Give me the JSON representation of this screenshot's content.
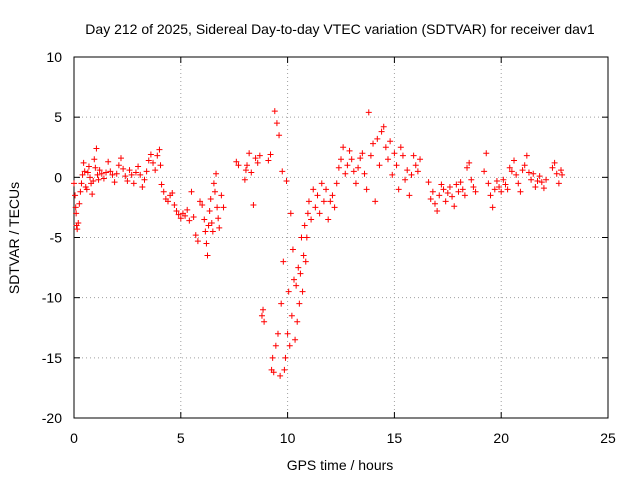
{
  "chart_data": {
    "type": "scatter",
    "title": "Day 212 of 2025, Sidereal Day-to-day VTEC variation (SDTVAR) for receiver dav1",
    "xlabel": "GPS time / hours",
    "ylabel": "SDTVAR / TECUs",
    "xlim": [
      0,
      25
    ],
    "ylim": [
      -20,
      10
    ],
    "xticks": [
      "0",
      "5",
      "10",
      "15",
      "20",
      "25"
    ],
    "yticks": [
      "-20",
      "-15",
      "-10",
      "-5",
      "0",
      "5",
      "10"
    ],
    "grid": true,
    "marker": "+",
    "series": [
      {
        "name": "SDTVAR",
        "color": "#ff0000",
        "points": [
          [
            0.0,
            -0.5
          ],
          [
            0.05,
            -1.5
          ],
          [
            0.08,
            -2.5
          ],
          [
            0.1,
            -3.0
          ],
          [
            0.12,
            -4.0
          ],
          [
            0.15,
            -4.3
          ],
          [
            0.2,
            -3.8
          ],
          [
            0.25,
            -2.2
          ],
          [
            0.3,
            -1.2
          ],
          [
            0.35,
            -0.5
          ],
          [
            0.4,
            0.2
          ],
          [
            0.45,
            1.2
          ],
          [
            0.5,
            0.5
          ],
          [
            0.55,
            -0.8
          ],
          [
            0.6,
            -1.0
          ],
          [
            0.65,
            0.4
          ],
          [
            0.7,
            0.9
          ],
          [
            0.75,
            0.0
          ],
          [
            0.8,
            -0.5
          ],
          [
            0.85,
            -1.4
          ],
          [
            0.9,
            -0.3
          ],
          [
            0.95,
            1.5
          ],
          [
            1.0,
            0.8
          ],
          [
            1.05,
            2.4
          ],
          [
            1.1,
            0.2
          ],
          [
            1.15,
            -0.2
          ],
          [
            1.2,
            0.6
          ],
          [
            1.3,
            0.3
          ],
          [
            1.4,
            -0.1
          ],
          [
            1.5,
            0.4
          ],
          [
            1.6,
            1.3
          ],
          [
            1.7,
            0.5
          ],
          [
            1.8,
            0.2
          ],
          [
            1.9,
            -0.4
          ],
          [
            2.0,
            0.3
          ],
          [
            2.1,
            1.0
          ],
          [
            2.2,
            1.6
          ],
          [
            2.3,
            0.7
          ],
          [
            2.4,
            0.1
          ],
          [
            2.5,
            -0.3
          ],
          [
            2.6,
            0.6
          ],
          [
            2.7,
            0.2
          ],
          [
            2.8,
            -0.5
          ],
          [
            2.9,
            0.4
          ],
          [
            3.0,
            0.9
          ],
          [
            3.1,
            0.2
          ],
          [
            3.2,
            -0.8
          ],
          [
            3.3,
            -0.2
          ],
          [
            3.4,
            0.5
          ],
          [
            3.5,
            1.4
          ],
          [
            3.6,
            1.9
          ],
          [
            3.7,
            1.2
          ],
          [
            3.8,
            0.6
          ],
          [
            3.9,
            1.8
          ],
          [
            4.0,
            2.3
          ],
          [
            4.05,
            1.0
          ],
          [
            4.1,
            -0.6
          ],
          [
            4.2,
            -1.2
          ],
          [
            4.3,
            -1.8
          ],
          [
            4.4,
            -2.0
          ],
          [
            4.5,
            -1.5
          ],
          [
            4.6,
            -1.3
          ],
          [
            4.7,
            -2.3
          ],
          [
            4.8,
            -2.8
          ],
          [
            4.9,
            -3.1
          ],
          [
            5.0,
            -3.4
          ],
          [
            5.1,
            -3.0
          ],
          [
            5.2,
            -3.2
          ],
          [
            5.3,
            -2.7
          ],
          [
            5.4,
            -3.6
          ],
          [
            5.5,
            -1.2
          ],
          [
            5.6,
            -3.3
          ],
          [
            5.7,
            -4.8
          ],
          [
            5.8,
            -5.3
          ],
          [
            5.9,
            -2.0
          ],
          [
            6.0,
            -2.3
          ],
          [
            6.1,
            -3.5
          ],
          [
            6.15,
            -4.5
          ],
          [
            6.2,
            -5.5
          ],
          [
            6.25,
            -6.5
          ],
          [
            6.3,
            -4.0
          ],
          [
            6.35,
            -2.8
          ],
          [
            6.4,
            -1.8
          ],
          [
            6.45,
            -3.8
          ],
          [
            6.5,
            -4.5
          ],
          [
            6.55,
            -0.5
          ],
          [
            6.6,
            -1.2
          ],
          [
            6.65,
            0.3
          ],
          [
            6.7,
            -2.5
          ],
          [
            6.75,
            -3.4
          ],
          [
            6.8,
            -4.2
          ],
          [
            6.9,
            -1.5
          ],
          [
            7.0,
            -2.5
          ],
          [
            7.6,
            1.3
          ],
          [
            7.7,
            1.0
          ],
          [
            8.0,
            -0.2
          ],
          [
            8.05,
            0.6
          ],
          [
            8.1,
            1.0
          ],
          [
            8.2,
            2.0
          ],
          [
            8.3,
            0.4
          ],
          [
            8.4,
            -2.3
          ],
          [
            8.5,
            1.6
          ],
          [
            8.6,
            1.2
          ],
          [
            8.7,
            1.8
          ],
          [
            8.8,
            -11.5
          ],
          [
            8.85,
            -11.0
          ],
          [
            8.9,
            -12.0
          ],
          [
            9.1,
            1.4
          ],
          [
            9.2,
            1.9
          ],
          [
            9.25,
            -16.0
          ],
          [
            9.3,
            -15.0
          ],
          [
            9.35,
            -16.2
          ],
          [
            9.4,
            5.5
          ],
          [
            9.45,
            -14.0
          ],
          [
            9.5,
            4.5
          ],
          [
            9.55,
            -13.0
          ],
          [
            9.6,
            3.5
          ],
          [
            9.65,
            -16.5
          ],
          [
            9.7,
            -10.5
          ],
          [
            9.75,
            0.5
          ],
          [
            9.8,
            -7.0
          ],
          [
            9.85,
            -16.0
          ],
          [
            9.9,
            -15.0
          ],
          [
            9.95,
            -0.3
          ],
          [
            10.0,
            -13.0
          ],
          [
            10.05,
            -9.5
          ],
          [
            10.1,
            -14.0
          ],
          [
            10.15,
            -3.0
          ],
          [
            10.2,
            -11.5
          ],
          [
            10.25,
            -6.0
          ],
          [
            10.3,
            -8.5
          ],
          [
            10.35,
            -13.5
          ],
          [
            10.4,
            -9.0
          ],
          [
            10.45,
            -12.0
          ],
          [
            10.5,
            -7.5
          ],
          [
            10.55,
            -10.5
          ],
          [
            10.6,
            -8.0
          ],
          [
            10.65,
            -5.0
          ],
          [
            10.7,
            -9.5
          ],
          [
            10.75,
            -6.5
          ],
          [
            10.8,
            -4.0
          ],
          [
            10.85,
            -7.0
          ],
          [
            10.9,
            -5.0
          ],
          [
            10.95,
            -3.0
          ],
          [
            11.0,
            -2.0
          ],
          [
            11.1,
            -3.5
          ],
          [
            11.2,
            -1.0
          ],
          [
            11.3,
            -2.5
          ],
          [
            11.4,
            -1.5
          ],
          [
            11.5,
            -3.0
          ],
          [
            11.6,
            -0.5
          ],
          [
            11.7,
            -2.0
          ],
          [
            11.8,
            -1.0
          ],
          [
            11.9,
            -3.5
          ],
          [
            12.0,
            -2.0
          ],
          [
            12.1,
            -1.5
          ],
          [
            12.2,
            -2.5
          ],
          [
            12.3,
            -0.5
          ],
          [
            12.4,
            0.8
          ],
          [
            12.5,
            1.5
          ],
          [
            12.6,
            2.5
          ],
          [
            12.7,
            0.3
          ],
          [
            12.8,
            1.0
          ],
          [
            12.9,
            2.2
          ],
          [
            13.0,
            1.5
          ],
          [
            13.1,
            0.5
          ],
          [
            13.2,
            -0.5
          ],
          [
            13.3,
            0.8
          ],
          [
            13.4,
            1.6
          ],
          [
            13.5,
            2.0
          ],
          [
            13.6,
            0.3
          ],
          [
            13.7,
            -1.0
          ],
          [
            13.8,
            5.4
          ],
          [
            13.9,
            1.8
          ],
          [
            14.0,
            2.8
          ],
          [
            14.1,
            -2.0
          ],
          [
            14.2,
            3.2
          ],
          [
            14.3,
            1.0
          ],
          [
            14.4,
            3.8
          ],
          [
            14.5,
            4.2
          ],
          [
            14.6,
            2.5
          ],
          [
            14.7,
            1.5
          ],
          [
            14.8,
            3.0
          ],
          [
            14.9,
            0.2
          ],
          [
            15.0,
            2.0
          ],
          [
            15.1,
            1.0
          ],
          [
            15.2,
            -1.0
          ],
          [
            15.3,
            2.5
          ],
          [
            15.4,
            1.8
          ],
          [
            15.5,
            -0.2
          ],
          [
            15.6,
            0.6
          ],
          [
            15.7,
            -1.5
          ],
          [
            15.8,
            0.2
          ],
          [
            15.9,
            1.8
          ],
          [
            16.0,
            1.0
          ],
          [
            16.1,
            0.5
          ],
          [
            16.2,
            1.5
          ],
          [
            16.6,
            -0.4
          ],
          [
            16.7,
            -1.8
          ],
          [
            16.8,
            -1.2
          ],
          [
            16.9,
            -2.2
          ],
          [
            17.0,
            -2.8
          ],
          [
            17.1,
            -1.5
          ],
          [
            17.2,
            -0.6
          ],
          [
            17.3,
            -1.0
          ],
          [
            17.4,
            -2.0
          ],
          [
            17.5,
            -1.3
          ],
          [
            17.6,
            -0.8
          ],
          [
            17.7,
            -1.6
          ],
          [
            17.8,
            -2.4
          ],
          [
            17.9,
            -0.6
          ],
          [
            18.0,
            -1.2
          ],
          [
            18.1,
            -0.4
          ],
          [
            18.2,
            -1.0
          ],
          [
            18.3,
            -1.5
          ],
          [
            18.4,
            0.8
          ],
          [
            18.5,
            1.2
          ],
          [
            18.6,
            -0.2
          ],
          [
            18.7,
            -0.8
          ],
          [
            18.8,
            -1.2
          ],
          [
            19.2,
            0.5
          ],
          [
            19.3,
            2.0
          ],
          [
            19.4,
            -0.5
          ],
          [
            19.5,
            -1.5
          ],
          [
            19.6,
            -2.5
          ],
          [
            19.7,
            -1.0
          ],
          [
            19.8,
            -0.3
          ],
          [
            19.9,
            -0.8
          ],
          [
            20.0,
            -1.2
          ],
          [
            20.1,
            -0.2
          ],
          [
            20.2,
            -0.6
          ],
          [
            20.3,
            -1.0
          ],
          [
            20.4,
            0.8
          ],
          [
            20.5,
            0.5
          ],
          [
            20.6,
            1.4
          ],
          [
            20.7,
            0.2
          ],
          [
            20.8,
            -0.5
          ],
          [
            20.9,
            -1.2
          ],
          [
            21.0,
            0.6
          ],
          [
            21.1,
            1.0
          ],
          [
            21.2,
            1.8
          ],
          [
            21.3,
            0.4
          ],
          [
            21.4,
            -0.2
          ],
          [
            21.5,
            0.3
          ],
          [
            21.6,
            -0.8
          ],
          [
            21.7,
            -0.3
          ],
          [
            21.8,
            0.1
          ],
          [
            21.9,
            -0.4
          ],
          [
            22.0,
            -0.9
          ],
          [
            22.1,
            -0.2
          ],
          [
            22.4,
            0.8
          ],
          [
            22.5,
            1.2
          ],
          [
            22.6,
            0.3
          ],
          [
            22.7,
            -0.5
          ],
          [
            22.8,
            0.6
          ],
          [
            22.85,
            0.2
          ]
        ]
      }
    ]
  }
}
